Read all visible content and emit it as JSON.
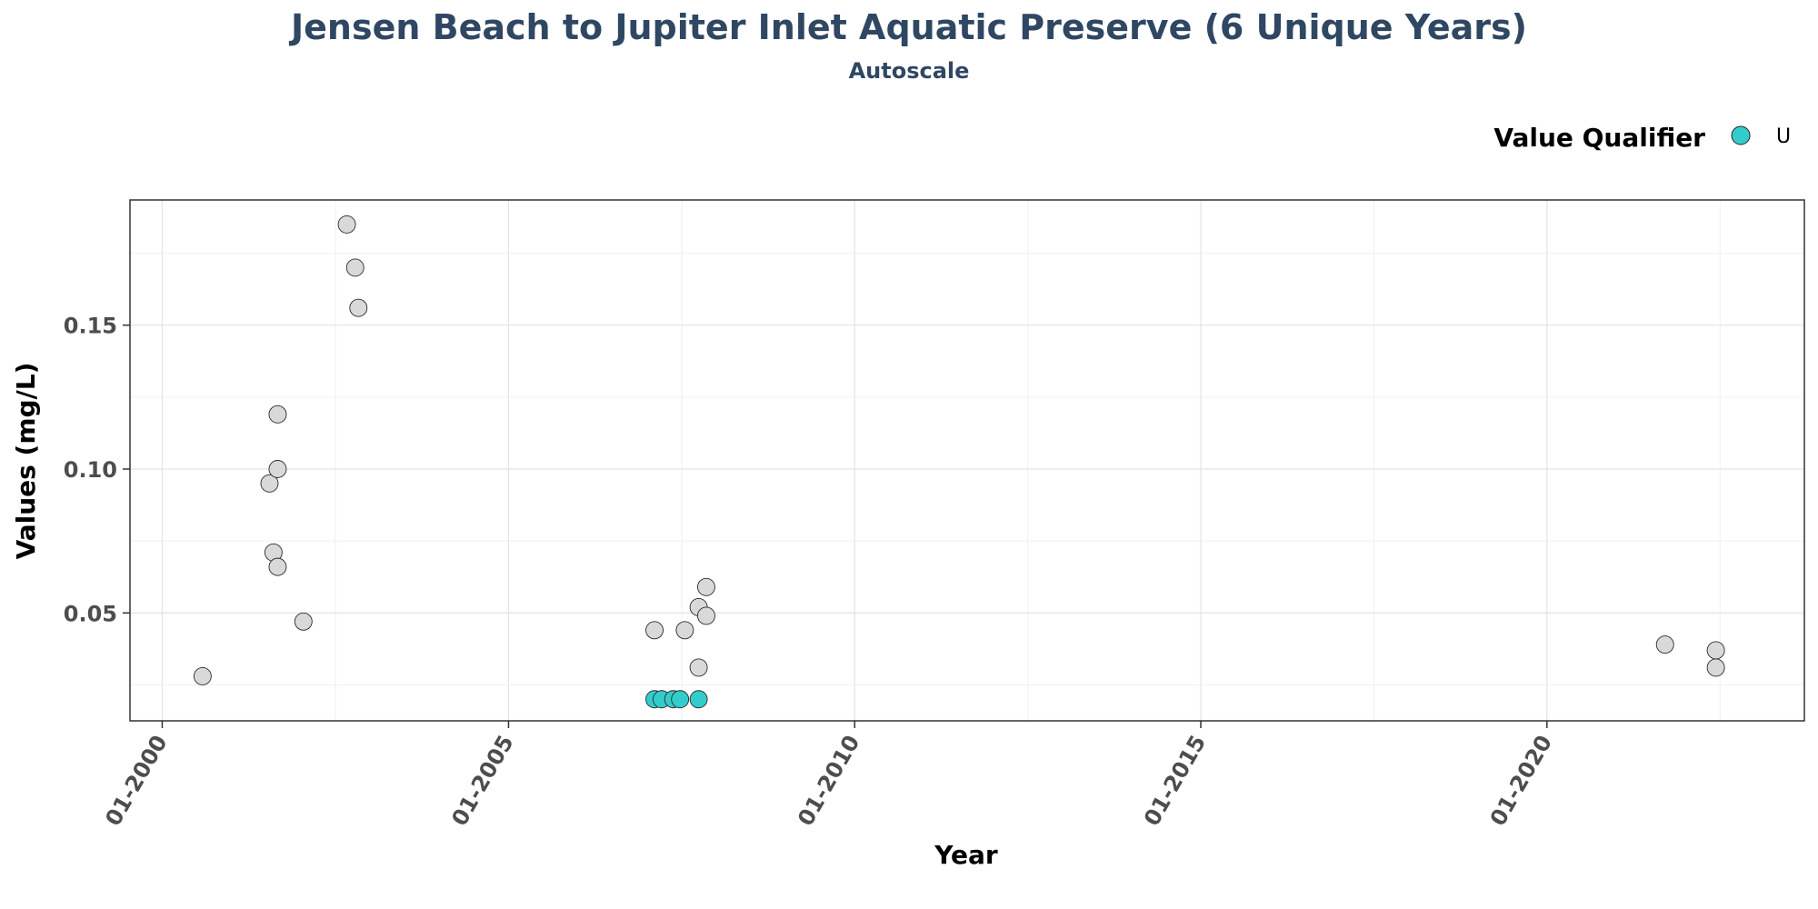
{
  "chart_data": {
    "type": "scatter",
    "title": "Jensen Beach to Jupiter Inlet Aquatic Preserve (6 Unique Years)",
    "subtitle": "Autoscale",
    "xlabel": "Year",
    "ylabel": "Values (mg/L)",
    "x_scale": "date",
    "xlim": [
      "1999-07-15",
      "2023-09-20"
    ],
    "ylim": [
      0.0125,
      0.1935
    ],
    "x_ticks": [
      "2000-01-01",
      "2005-01-01",
      "2010-01-01",
      "2015-01-01",
      "2020-01-01"
    ],
    "x_tick_labels": [
      "01-2000",
      "01-2005",
      "01-2010",
      "01-2015",
      "01-2020"
    ],
    "y_ticks": [
      0.05,
      0.1,
      0.15
    ],
    "y_tick_labels": [
      "0.05",
      "0.10",
      "0.15"
    ],
    "grid": true,
    "legend": {
      "title": "Value Qualifier",
      "position": "top-right",
      "entries": [
        {
          "label": "U",
          "color": "#33cccc"
        }
      ]
    },
    "colors": {
      "default_point": "#d9d9d9",
      "qualifier_u": "#33cccc",
      "title": "#2f4763"
    },
    "series": [
      {
        "qualifier": "none",
        "points": [
          {
            "x": "2000-08-01",
            "y": 0.028
          },
          {
            "x": "2001-07-20",
            "y": 0.095
          },
          {
            "x": "2001-08-10",
            "y": 0.071
          },
          {
            "x": "2001-09-01",
            "y": 0.1
          },
          {
            "x": "2001-09-01",
            "y": 0.119
          },
          {
            "x": "2001-09-01",
            "y": 0.066
          },
          {
            "x": "2002-01-15",
            "y": 0.047
          },
          {
            "x": "2002-09-01",
            "y": 0.185
          },
          {
            "x": "2002-10-15",
            "y": 0.17
          },
          {
            "x": "2002-11-01",
            "y": 0.156
          },
          {
            "x": "2007-02-10",
            "y": 0.044
          },
          {
            "x": "2007-07-20",
            "y": 0.044
          },
          {
            "x": "2007-10-01",
            "y": 0.052
          },
          {
            "x": "2007-10-01",
            "y": 0.031
          },
          {
            "x": "2007-11-10",
            "y": 0.059
          },
          {
            "x": "2007-11-10",
            "y": 0.049
          },
          {
            "x": "2021-09-15",
            "y": 0.039
          },
          {
            "x": "2022-06-10",
            "y": 0.037
          },
          {
            "x": "2022-06-10",
            "y": 0.031
          }
        ]
      },
      {
        "name": "U",
        "qualifier": "U",
        "points": [
          {
            "x": "2007-02-10",
            "y": 0.02
          },
          {
            "x": "2007-03-20",
            "y": 0.02
          },
          {
            "x": "2007-05-20",
            "y": 0.02
          },
          {
            "x": "2007-06-25",
            "y": 0.02
          },
          {
            "x": "2007-10-01",
            "y": 0.02
          }
        ]
      }
    ]
  }
}
